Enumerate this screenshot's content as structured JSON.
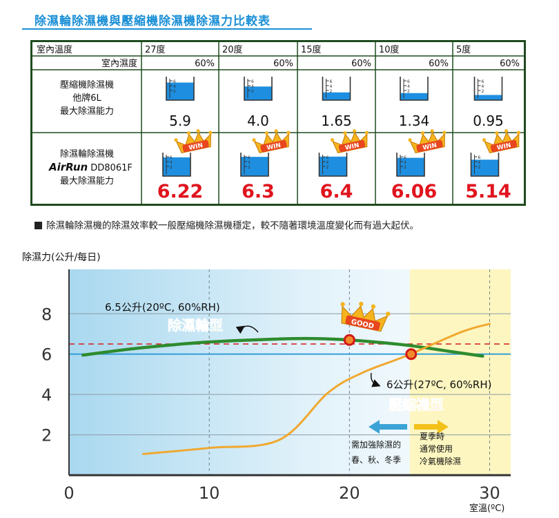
{
  "title": "除濕輪除濕機與壓縮機除濕機除濕力比較表",
  "table": {
    "header_label": "室內溫度",
    "humidity_label": "室內濕度",
    "temps": [
      "27度",
      "20度",
      "15度",
      "10度",
      "5度"
    ],
    "humidity": [
      "60%",
      "60%",
      "60%",
      "60%",
      "60%"
    ],
    "row1_label": [
      "壓縮機除濕機",
      "他牌6L",
      "最大除濕能力"
    ],
    "row1_values": [
      "5.9",
      "4.0",
      "1.65",
      "1.34",
      "0.95"
    ],
    "row2_label_top": "除濕輪除濕機",
    "row2_brand": "AirRun",
    "row2_model": "DD8061F",
    "row2_label_bottom": "最大除濕能力",
    "row2_values": [
      "6.22",
      "6.3",
      "6.4",
      "6.06",
      "5.14"
    ],
    "badge": "WIN",
    "gauge_ticks": [
      "6",
      "4",
      "2"
    ]
  },
  "note": "除濕輪除濕機的除濕效率較一般壓縮機除濕機穩定，較不隨著環境溫度變化而有過大起伏。",
  "colors": {
    "title": "#1a8fd6",
    "table_border": "#1f4a1f",
    "water": "#1e8fe0",
    "red_value": "#e0141e",
    "crown": "#f5b41e",
    "desiccant_curve": "#2e8b2e",
    "compressor_curve": "#f0a830",
    "red_dashed": "#d62828",
    "blue_line": "#2a9ad8",
    "summer_zone": "#fdf6c0"
  },
  "chart_data": {
    "type": "line",
    "ylabel": "除濕力(公升/每日)",
    "xlabel": "室溫(ºC)",
    "xlim": [
      0,
      31.5
    ],
    "ylim": [
      0,
      10.2
    ],
    "xticks": [
      0,
      10,
      20,
      30
    ],
    "yticks": [
      2,
      4,
      6,
      8
    ],
    "series": [
      {
        "name": "除濕輪型",
        "x": [
          1,
          5,
          10,
          15,
          17.5,
          20,
          24,
          27,
          29.5
        ],
        "values": [
          5.95,
          6.3,
          6.6,
          6.75,
          6.77,
          6.7,
          6.45,
          6.15,
          5.9
        ]
      },
      {
        "name": "壓縮機型",
        "x": [
          5.3,
          10,
          15,
          18.5,
          21,
          24,
          28,
          30
        ],
        "values": [
          1.05,
          1.35,
          1.75,
          4.1,
          5.1,
          5.9,
          7.1,
          7.5
        ]
      }
    ],
    "reference_lines": [
      {
        "value": 6.5,
        "style": "dashed"
      },
      {
        "value": 6.0,
        "style": "solid"
      }
    ],
    "annotations": {
      "desiccant_ref": "6.5公升(20ºC, 60%RH)",
      "compressor_ref": "6公升(27ºC, 60%RH)",
      "desiccant_label": "除濕輪型",
      "compressor_label": "壓縮機型",
      "good_badge": "GOOD",
      "left_note_1": "需加強除濕的",
      "left_note_2": "春、秋、冬季",
      "right_note_1": "夏季時",
      "right_note_2": "通常使用",
      "right_note_3": "冷氣機除濕"
    },
    "markers": [
      {
        "x": 20,
        "y": 6.7
      },
      {
        "x": 24.4,
        "y": 6.0
      }
    ],
    "summer_zone_from": 24.3,
    "vertical_dashed_x": [
      10,
      20,
      30
    ],
    "grid": true
  }
}
